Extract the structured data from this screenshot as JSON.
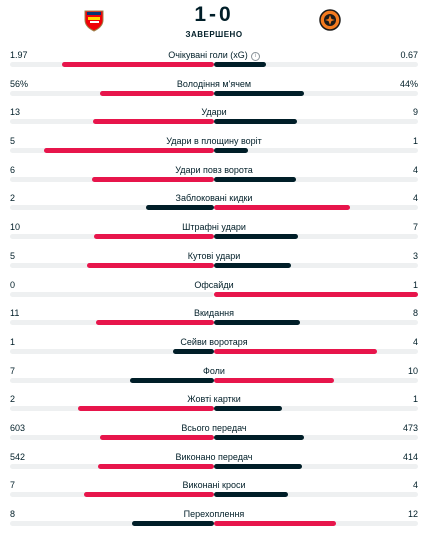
{
  "match": {
    "score": "1-0",
    "status": "ЗАВЕРШЕНО",
    "home_crest": "arsenal-crest-icon",
    "away_crest": "shakhtar-crest-icon"
  },
  "colors": {
    "leader": "#e7154b",
    "trailer": "#001e28",
    "track": "#eef0f1"
  },
  "stats": [
    {
      "label": "Очікувані голи (xG)",
      "home": "1.97",
      "away": "0.67",
      "info_icon": "info-icon",
      "home_share": 0.746,
      "away_share": 0.254,
      "home_leads": true
    },
    {
      "label": "Володіння м'ячем",
      "home": "56%",
      "away": "44%",
      "home_share": 0.56,
      "away_share": 0.44,
      "home_leads": true
    },
    {
      "label": "Удари",
      "home": "13",
      "away": "9",
      "home_share": 0.591,
      "away_share": 0.409,
      "home_leads": true
    },
    {
      "label": "Удари в площину воріт",
      "home": "5",
      "away": "1",
      "home_share": 0.833,
      "away_share": 0.167,
      "home_leads": true
    },
    {
      "label": "Удари повз ворота",
      "home": "6",
      "away": "4",
      "home_share": 0.6,
      "away_share": 0.4,
      "home_leads": true
    },
    {
      "label": "Заблоковані кидки",
      "home": "2",
      "away": "4",
      "home_share": 0.333,
      "away_share": 0.667,
      "home_leads": false
    },
    {
      "label": "Штрафні удари",
      "home": "10",
      "away": "7",
      "home_share": 0.588,
      "away_share": 0.412,
      "home_leads": true
    },
    {
      "label": "Кутові удари",
      "home": "5",
      "away": "3",
      "home_share": 0.625,
      "away_share": 0.375,
      "home_leads": true
    },
    {
      "label": "Офсайди",
      "home": "0",
      "away": "1",
      "home_share": 0.0,
      "away_share": 1.0,
      "home_leads": false
    },
    {
      "label": "Вкидання",
      "home": "11",
      "away": "8",
      "home_share": 0.579,
      "away_share": 0.421,
      "home_leads": true
    },
    {
      "label": "Сейви воротаря",
      "home": "1",
      "away": "4",
      "home_share": 0.2,
      "away_share": 0.8,
      "home_leads": false
    },
    {
      "label": "Фоли",
      "home": "7",
      "away": "10",
      "home_share": 0.412,
      "away_share": 0.588,
      "home_leads": false
    },
    {
      "label": "Жовті картки",
      "home": "2",
      "away": "1",
      "home_share": 0.667,
      "away_share": 0.333,
      "home_leads": true
    },
    {
      "label": "Всього передач",
      "home": "603",
      "away": "473",
      "home_share": 0.56,
      "away_share": 0.44,
      "home_leads": true
    },
    {
      "label": "Виконано передач",
      "home": "542",
      "away": "414",
      "home_share": 0.567,
      "away_share": 0.433,
      "home_leads": true
    },
    {
      "label": "Виконані кроси",
      "home": "7",
      "away": "4",
      "home_share": 0.636,
      "away_share": 0.364,
      "home_leads": true
    },
    {
      "label": "Перехоплення",
      "home": "8",
      "away": "12",
      "home_share": 0.4,
      "away_share": 0.6,
      "home_leads": false
    }
  ]
}
